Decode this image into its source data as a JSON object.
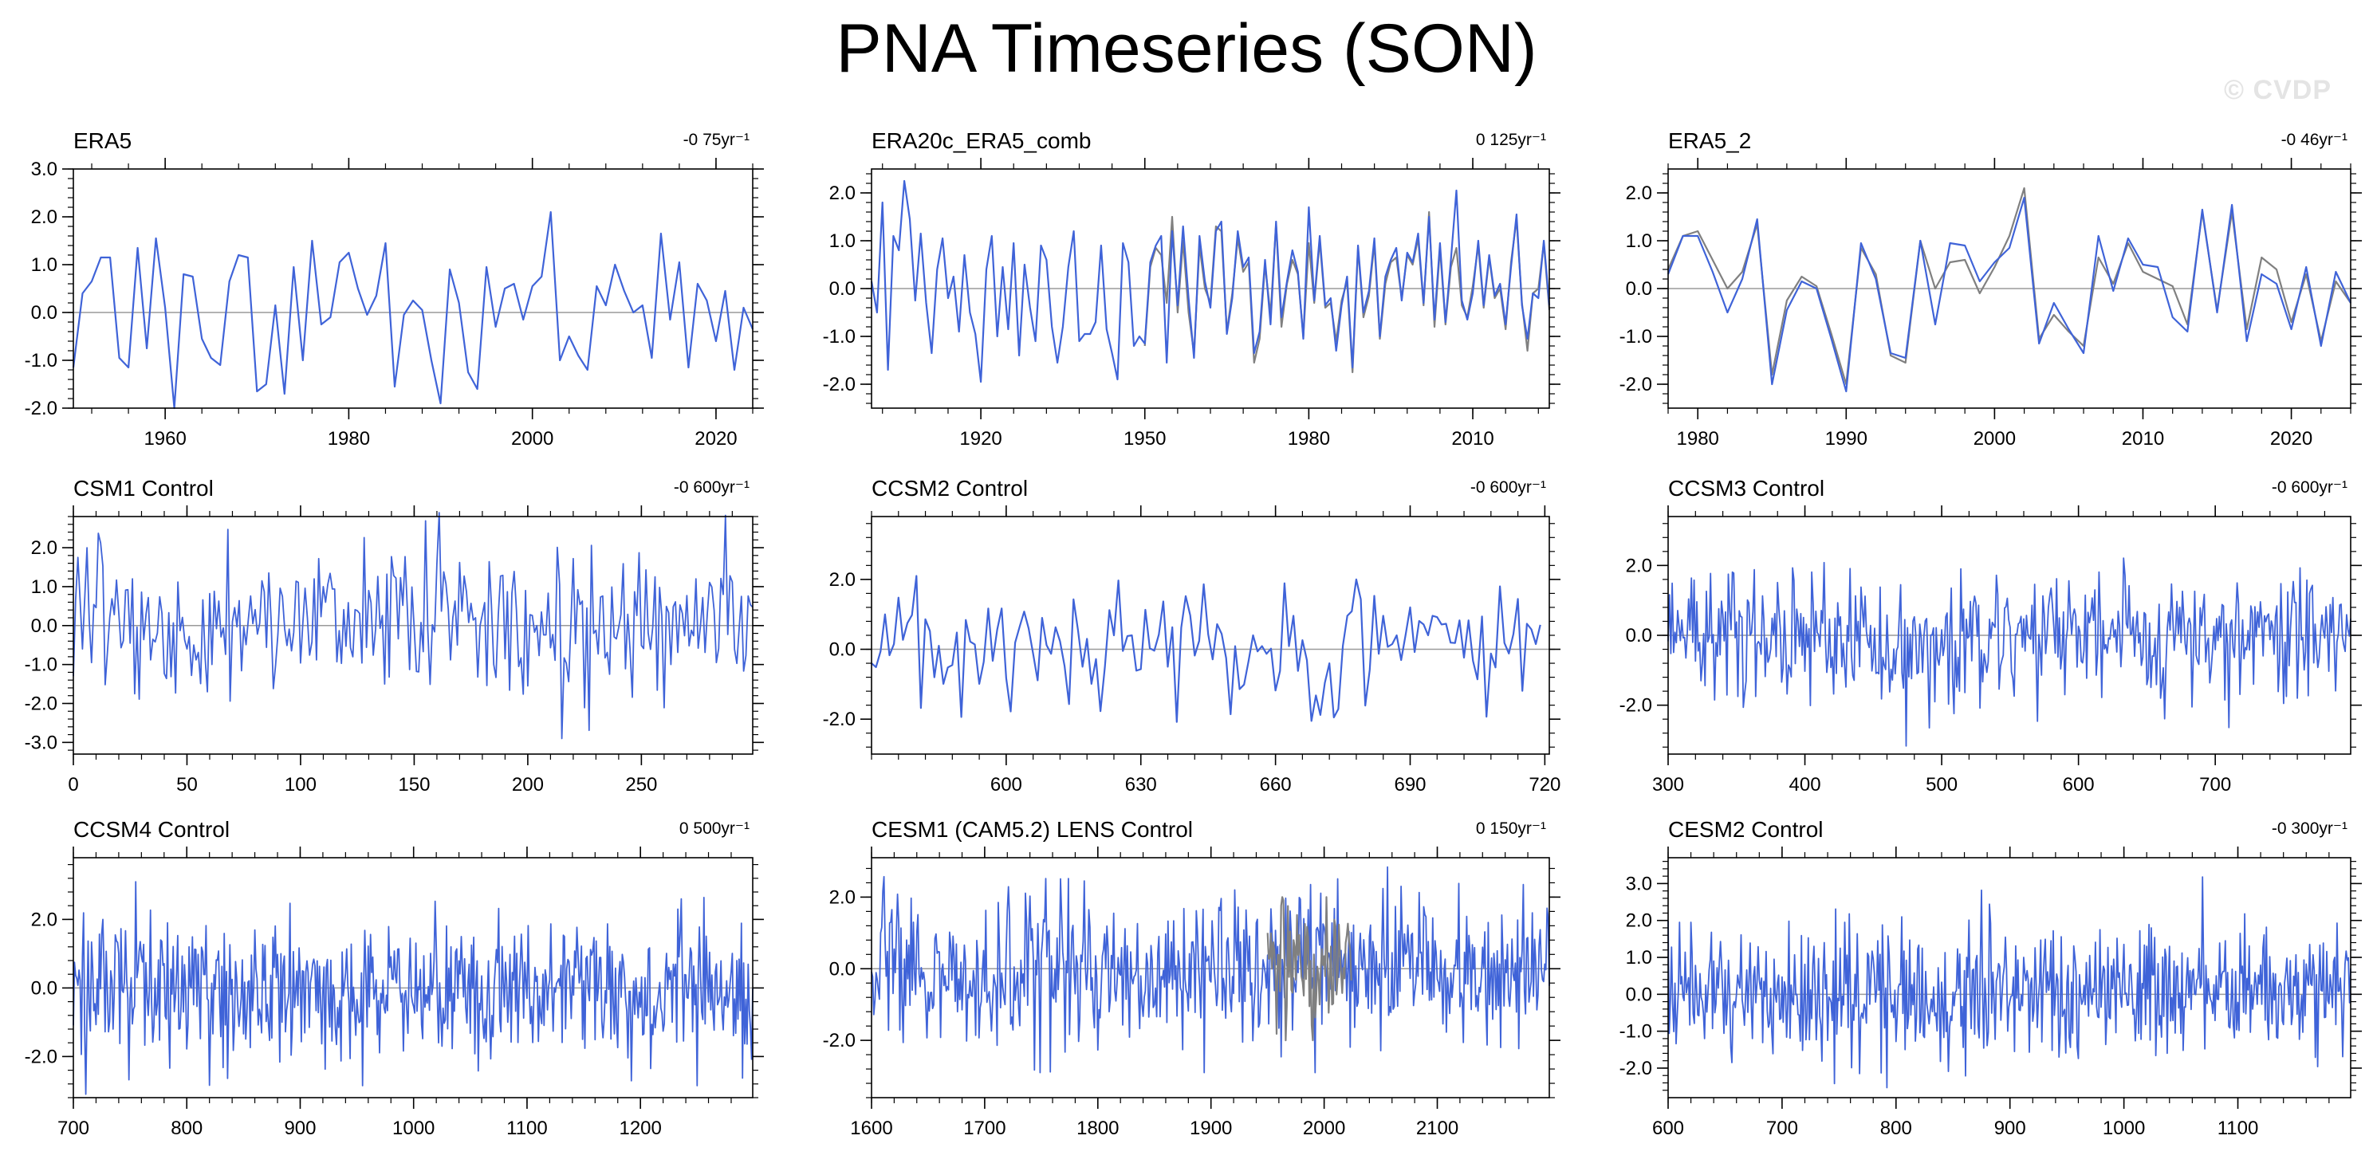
{
  "figure": {
    "title": "PNA Timeseries (SON)",
    "watermark": "© CVDP",
    "colors": {
      "primary": "#3f63d8",
      "secondary": "#808080",
      "zero_line": "#9a9a9a",
      "axis": "#000000"
    }
  },
  "chart_data": [
    {
      "type": "line",
      "title": "ERA5",
      "trend": "-0 75yr⁻¹",
      "xlim": [
        1950,
        2024
      ],
      "ylim": [
        -2,
        3
      ],
      "xticks": [
        1960,
        1980,
        2000,
        2020
      ],
      "xtick_labels": [
        "1960",
        "1980",
        "2000",
        "2020"
      ],
      "yticks": [
        -2,
        -1,
        0,
        1,
        2,
        3
      ],
      "ytick_labels": [
        "-2.0",
        "-1.0",
        "0.0",
        "1.0",
        "2.0",
        "3.0"
      ],
      "series": [
        {
          "x_start": 1950,
          "x_step": 1,
          "color": "#3f63d8",
          "values": [
            -1.15,
            0.4,
            0.65,
            1.15,
            1.15,
            -0.95,
            -1.15,
            1.35,
            -0.75,
            1.55,
            0.1,
            -2.0,
            0.8,
            0.75,
            -0.55,
            -0.95,
            -1.1,
            0.65,
            1.2,
            1.15,
            -1.65,
            -1.5,
            0.15,
            -1.7,
            0.95,
            -1.0,
            1.5,
            -0.25,
            -0.1,
            1.05,
            1.25,
            0.5,
            -0.05,
            0.35,
            1.45,
            -1.55,
            -0.05,
            0.25,
            0.05,
            -1.0,
            -1.9,
            0.9,
            0.2,
            -1.25,
            -1.6,
            0.95,
            -0.3,
            0.5,
            0.6,
            -0.15,
            0.55,
            0.75,
            2.1,
            -1.0,
            -0.5,
            -0.9,
            -1.2,
            0.55,
            0.15,
            1.0,
            0.45,
            0.0,
            0.15,
            -0.95,
            1.65,
            -0.15,
            1.05,
            -1.15,
            0.6,
            0.25,
            -0.6,
            0.45,
            -1.2,
            0.1,
            -0.35
          ]
        }
      ]
    },
    {
      "type": "line",
      "title": "ERA20c_ERA5_comb",
      "trend": "0 125yr⁻¹",
      "xlim": [
        1900,
        2024
      ],
      "ylim": [
        -2.5,
        2.5
      ],
      "xticks": [
        1920,
        1950,
        1980,
        2010
      ],
      "xtick_labels": [
        "1920",
        "1950",
        "1980",
        "2010"
      ],
      "yticks": [
        -2,
        -1,
        0,
        1,
        2
      ],
      "ytick_labels": [
        "-2.0",
        "-1.0",
        "0.0",
        "1.0",
        "2.0"
      ],
      "series": [
        {
          "x_start": 1950,
          "x_step": 1,
          "color": "#808080",
          "values": [
            -1.2,
            0.45,
            0.85,
            0.7,
            -0.3,
            1.5,
            -0.5,
            1.0,
            -0.5,
            -1.35,
            0.9,
            0.0,
            -0.3,
            1.3,
            1.2,
            -0.9,
            -0.1,
            1.05,
            0.35,
            0.55,
            -1.55,
            -1.05,
            0.5,
            -0.55,
            1.35,
            -0.8,
            0.1,
            0.6,
            0.3,
            -1.0,
            0.95,
            -0.3,
            1.0,
            -0.4,
            -0.3,
            -1.1,
            -0.25,
            0.15,
            -1.75,
            0.85,
            -0.6,
            -0.15,
            0.95,
            -1.05,
            0.1,
            0.55,
            0.65,
            -0.2,
            0.7,
            0.5,
            1.05,
            -0.35,
            1.6,
            -0.8,
            0.85,
            -0.75,
            0.45,
            0.85,
            -0.35,
            -0.6,
            0.05,
            0.9,
            -0.4,
            0.65,
            -0.2,
            0.0,
            -0.85,
            0.55,
            1.45,
            -0.3,
            -1.3,
            -0.1,
            0.0,
            0.95,
            -0.45
          ]
        },
        {
          "x_start": 1900,
          "x_step": 1,
          "color": "#3f63d8",
          "values": [
            0.15,
            -0.5,
            1.8,
            -1.7,
            1.1,
            0.8,
            2.25,
            1.45,
            -0.25,
            1.15,
            -0.3,
            -1.35,
            0.4,
            1.05,
            -0.2,
            0.25,
            -0.9,
            0.7,
            -0.5,
            -0.95,
            -1.95,
            0.4,
            1.1,
            -1.0,
            0.45,
            -0.85,
            0.95,
            -1.4,
            0.5,
            -0.4,
            -1.1,
            0.9,
            0.6,
            -0.8,
            -1.55,
            -0.8,
            0.45,
            1.2,
            -1.1,
            -0.95,
            -0.95,
            -0.7,
            0.9,
            -0.85,
            -1.35,
            -1.9,
            0.95,
            0.55,
            -1.2,
            -1.0,
            -1.15,
            0.55,
            0.9,
            1.1,
            -1.55,
            1.2,
            -0.35,
            1.3,
            -0.2,
            -1.45,
            1.1,
            0.15,
            -0.4,
            1.2,
            1.4,
            -0.95,
            -0.2,
            1.2,
            0.45,
            0.65,
            -1.35,
            -0.9,
            0.6,
            -0.75,
            1.4,
            -0.6,
            0.15,
            0.8,
            0.35,
            -1.05,
            1.7,
            -0.25,
            1.1,
            -0.35,
            -0.2,
            -1.3,
            -0.35,
            0.25,
            -1.65,
            0.9,
            -0.5,
            -0.05,
            1.05,
            -1.0,
            0.25,
            0.6,
            0.85,
            -0.25,
            0.75,
            0.55,
            1.15,
            -0.3,
            1.5,
            -0.65,
            0.95,
            -0.7,
            0.6,
            2.05,
            -0.25,
            -0.65,
            -0.1,
            1.0,
            -0.35,
            0.7,
            -0.15,
            0.1,
            -0.75,
            0.45,
            1.55,
            -0.35,
            -1.05,
            -0.1,
            -0.2,
            1.0,
            -0.35
          ]
        }
      ]
    },
    {
      "type": "line",
      "title": "ERA5_2",
      "trend": "-0 46yr⁻¹",
      "xlim": [
        1978,
        2024
      ],
      "ylim": [
        -2.5,
        2.5
      ],
      "xticks": [
        1980,
        1990,
        2000,
        2010,
        2020
      ],
      "xtick_labels": [
        "1980",
        "1990",
        "2000",
        "2010",
        "2020"
      ],
      "yticks": [
        -2,
        -1,
        0,
        1,
        2
      ],
      "ytick_labels": [
        "-2.0",
        "-1.0",
        "0.0",
        "1.0",
        "2.0"
      ],
      "series": [
        {
          "x_start": 1978,
          "x_step": 1,
          "color": "#808080",
          "values": [
            0.4,
            1.1,
            1.2,
            0.6,
            0.0,
            0.35,
            1.35,
            -1.8,
            -0.25,
            0.25,
            0.05,
            -0.95,
            -2.0,
            0.85,
            0.3,
            -1.4,
            -1.55,
            1.0,
            0.0,
            0.55,
            0.6,
            -0.1,
            0.45,
            1.1,
            2.1,
            -1.05,
            -0.55,
            -0.9,
            -1.2,
            0.65,
            0.1,
            0.95,
            0.35,
            0.2,
            0.05,
            -0.75,
            1.6,
            -0.45,
            1.6,
            -0.85,
            0.65,
            0.4,
            -0.7,
            0.3,
            -1.1,
            0.15,
            -0.3
          ]
        },
        {
          "x_start": 1978,
          "x_step": 1,
          "color": "#3f63d8",
          "values": [
            0.3,
            1.1,
            1.1,
            0.35,
            -0.5,
            0.2,
            1.45,
            -2.0,
            -0.45,
            0.15,
            0.0,
            -1.05,
            -2.15,
            0.95,
            0.2,
            -1.35,
            -1.45,
            1.0,
            -0.75,
            0.95,
            0.9,
            0.15,
            0.55,
            0.85,
            1.9,
            -1.15,
            -0.3,
            -0.85,
            -1.35,
            1.1,
            -0.05,
            1.05,
            0.5,
            0.45,
            -0.6,
            -0.9,
            1.65,
            -0.5,
            1.75,
            -1.1,
            0.3,
            0.1,
            -0.85,
            0.45,
            -1.2,
            0.35,
            -0.3
          ]
        }
      ]
    },
    {
      "type": "line",
      "title": "CSM1 Control",
      "trend": "-0 600yr⁻¹",
      "xlim": [
        0,
        299
      ],
      "ylim": [
        -3.3,
        2.8
      ],
      "xticks": [
        0,
        50,
        100,
        150,
        200,
        250
      ],
      "xtick_labels": [
        "0",
        "50",
        "100",
        "150",
        "200",
        "250"
      ],
      "yticks": [
        -3,
        -2,
        -1,
        0,
        1,
        2
      ],
      "ytick_labels": [
        "-3.0",
        "-2.0",
        "-1.0",
        "0.0",
        "1.0",
        "2.0"
      ],
      "series": [
        {
          "generator": {
            "n": 300,
            "seed": 11,
            "amp": 0.95,
            "clip": 2.9
          },
          "x_start": 0,
          "x_step": 1,
          "color": "#3f63d8"
        }
      ]
    },
    {
      "type": "line",
      "title": "CCSM2 Control",
      "trend": "-0 600yr⁻¹",
      "xlim": [
        570,
        721
      ],
      "ylim": [
        -3,
        3.8
      ],
      "xticks": [
        600,
        630,
        660,
        690,
        720
      ],
      "xtick_labels": [
        "600",
        "630",
        "660",
        "690",
        "720"
      ],
      "yticks": [
        -2,
        0,
        2
      ],
      "ytick_labels": [
        "-2.0",
        "0.0",
        "2.0"
      ],
      "series": [
        {
          "generator": {
            "n": 150,
            "seed": 23,
            "amp": 0.95,
            "clip": 3.3
          },
          "x_start": 570,
          "x_step": 1,
          "color": "#3f63d8"
        }
      ]
    },
    {
      "type": "line",
      "title": "CCSM3 Control",
      "trend": "-0 600yr⁻¹",
      "xlim": [
        300,
        799
      ],
      "ylim": [
        -3.4,
        3.4
      ],
      "xticks": [
        300,
        400,
        500,
        600,
        700
      ],
      "xtick_labels": [
        "300",
        "400",
        "500",
        "600",
        "700"
      ],
      "yticks": [
        -2,
        0,
        2
      ],
      "ytick_labels": [
        "-2.0",
        "0.0",
        "2.0"
      ],
      "series": [
        {
          "generator": {
            "n": 500,
            "seed": 37,
            "amp": 0.95,
            "clip": 3.2
          },
          "x_start": 300,
          "x_step": 1,
          "color": "#3f63d8"
        }
      ]
    },
    {
      "type": "line",
      "title": "CCSM4 Control",
      "trend": "0 500yr⁻¹",
      "xlim": [
        700,
        1299
      ],
      "ylim": [
        -3.2,
        3.8
      ],
      "xticks": [
        700,
        800,
        900,
        1000,
        1100,
        1200
      ],
      "xtick_labels": [
        "700",
        "800",
        "900",
        "1000",
        "1100",
        "1200"
      ],
      "yticks": [
        -2,
        0,
        2
      ],
      "ytick_labels": [
        "-2.0",
        "0.0",
        "2.0"
      ],
      "series": [
        {
          "generator": {
            "n": 600,
            "seed": 53,
            "amp": 1.0,
            "clip": 3.1
          },
          "x_start": 700,
          "x_step": 1,
          "color": "#3f63d8"
        }
      ]
    },
    {
      "type": "line",
      "title": "CESM1 (CAM5.2) LENS Control",
      "trend": "0 150yr⁻¹",
      "xlim": [
        1600,
        2199
      ],
      "ylim": [
        -3.6,
        3.1
      ],
      "xticks": [
        1600,
        1700,
        1800,
        1900,
        2000,
        2100
      ],
      "xtick_labels": [
        "1600",
        "1700",
        "1800",
        "1900",
        "2000",
        "2100"
      ],
      "yticks": [
        -2,
        0,
        2
      ],
      "ytick_labels": [
        "-2.0",
        "0.0",
        "2.0"
      ],
      "series": [
        {
          "generator": {
            "n": 600,
            "seed": 71,
            "amp": 1.0,
            "clip": 2.9
          },
          "x_start": 1600,
          "x_step": 1,
          "color": "#3f63d8"
        },
        {
          "generator": {
            "n": 75,
            "seed": 97,
            "amp": 0.9,
            "clip": 2.0
          },
          "x_start": 1950,
          "x_step": 1,
          "color": "#808080"
        }
      ]
    },
    {
      "type": "line",
      "title": "CESM2 Control",
      "trend": "-0 300yr⁻¹",
      "xlim": [
        600,
        1199
      ],
      "ylim": [
        -2.8,
        3.7
      ],
      "xticks": [
        600,
        700,
        800,
        900,
        1000,
        1100
      ],
      "xtick_labels": [
        "600",
        "700",
        "800",
        "900",
        "1000",
        "1100"
      ],
      "yticks": [
        -2,
        -1,
        0,
        1,
        2,
        3
      ],
      "ytick_labels": [
        "-2.0",
        "-1.0",
        "0.0",
        "1.0",
        "2.0",
        "3.0"
      ],
      "series": [
        {
          "generator": {
            "n": 600,
            "seed": 89,
            "amp": 0.9,
            "clip": 3.2
          },
          "x_start": 600,
          "x_step": 1,
          "color": "#3f63d8"
        }
      ]
    }
  ]
}
